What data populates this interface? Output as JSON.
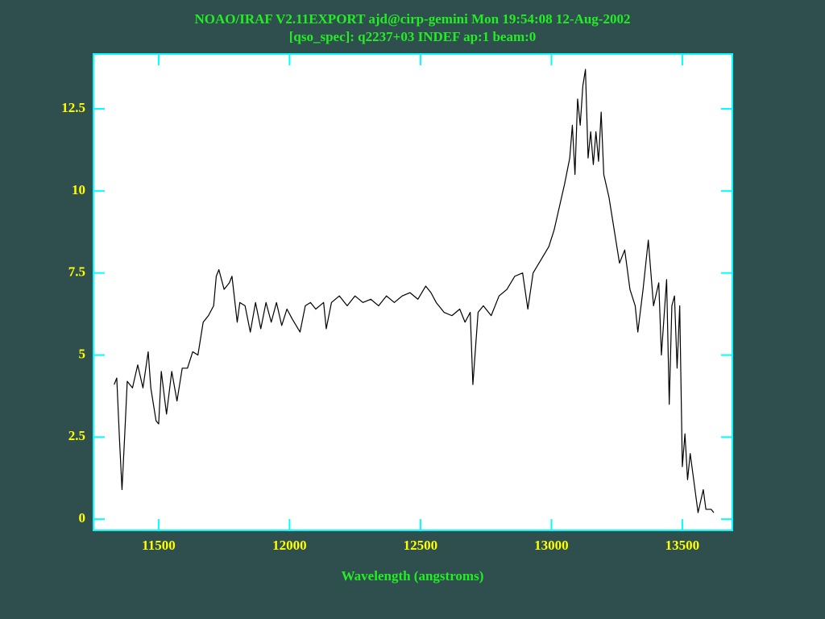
{
  "chart_data": {
    "type": "line",
    "title": "NOAO/IRAF V2.11EXPORT ajd@cirp-gemini Mon 19:54:08 12-Aug-2002",
    "subtitle": "[qso_spec]: q2237+03 INDEF ap:1 beam:0",
    "x_label": "Wavelength (angstroms)",
    "xlim": [
      11251,
      13691
    ],
    "ylim": [
      -0.34,
      14.17
    ],
    "xticks": [
      11500,
      12000,
      12500,
      13000,
      13500
    ],
    "yticks": [
      0,
      2.5,
      5,
      7.5,
      10,
      12.5
    ],
    "color": "#000000",
    "x": [
      11330,
      11340,
      11350,
      11360,
      11370,
      11380,
      11400,
      11420,
      11440,
      11460,
      11470,
      11490,
      11500,
      11510,
      11530,
      11550,
      11570,
      11590,
      11610,
      11630,
      11650,
      11670,
      11690,
      11710,
      11720,
      11730,
      11750,
      11770,
      11780,
      11800,
      11810,
      11830,
      11850,
      11870,
      11890,
      11910,
      11930,
      11950,
      11970,
      11990,
      12010,
      12040,
      12060,
      12080,
      12100,
      12130,
      12140,
      12160,
      12190,
      12220,
      12250,
      12280,
      12310,
      12340,
      12370,
      12400,
      12430,
      12460,
      12490,
      12520,
      12540,
      12560,
      12590,
      12620,
      12650,
      12670,
      12690,
      12700,
      12720,
      12740,
      12770,
      12800,
      12830,
      12860,
      12890,
      12910,
      12930,
      12960,
      12990,
      13010,
      13030,
      13050,
      13070,
      13080,
      13090,
      13100,
      13110,
      13120,
      13130,
      13140,
      13150,
      13160,
      13170,
      13180,
      13190,
      13200,
      13220,
      13240,
      13260,
      13280,
      13300,
      13320,
      13330,
      13350,
      13370,
      13390,
      13410,
      13420,
      13440,
      13450,
      13460,
      13470,
      13480,
      13490,
      13500,
      13510,
      13520,
      13530,
      13550,
      13560,
      13580,
      13590,
      13610,
      13620
    ],
    "values": [
      4.1,
      4.3,
      2.5,
      0.9,
      2.5,
      4.2,
      4.0,
      4.7,
      4.0,
      5.1,
      4.0,
      3.0,
      2.9,
      4.5,
      3.2,
      4.5,
      3.6,
      4.6,
      4.6,
      5.1,
      5.0,
      6.0,
      6.2,
      6.5,
      7.4,
      7.6,
      7.0,
      7.2,
      7.4,
      6.0,
      6.6,
      6.5,
      5.7,
      6.6,
      5.8,
      6.6,
      6.0,
      6.6,
      5.9,
      6.4,
      6.1,
      5.7,
      6.5,
      6.6,
      6.4,
      6.6,
      5.8,
      6.6,
      6.8,
      6.5,
      6.8,
      6.6,
      6.7,
      6.5,
      6.8,
      6.6,
      6.8,
      6.9,
      6.7,
      7.1,
      6.9,
      6.6,
      6.3,
      6.2,
      6.4,
      6.0,
      6.3,
      4.1,
      6.3,
      6.5,
      6.2,
      6.8,
      7.0,
      7.4,
      7.5,
      6.4,
      7.5,
      7.9,
      8.3,
      8.8,
      9.5,
      10.2,
      11.0,
      12.0,
      10.5,
      12.8,
      12.0,
      13.2,
      13.7,
      11.0,
      11.8,
      10.8,
      11.8,
      10.9,
      12.4,
      10.5,
      9.8,
      8.8,
      7.8,
      8.2,
      7.0,
      6.5,
      5.7,
      7.0,
      8.5,
      6.5,
      7.2,
      5.0,
      7.3,
      3.5,
      6.5,
      6.8,
      4.6,
      6.5,
      1.6,
      2.6,
      1.2,
      2.0,
      0.8,
      0.2,
      0.9,
      0.3,
      0.3,
      0.2
    ]
  }
}
